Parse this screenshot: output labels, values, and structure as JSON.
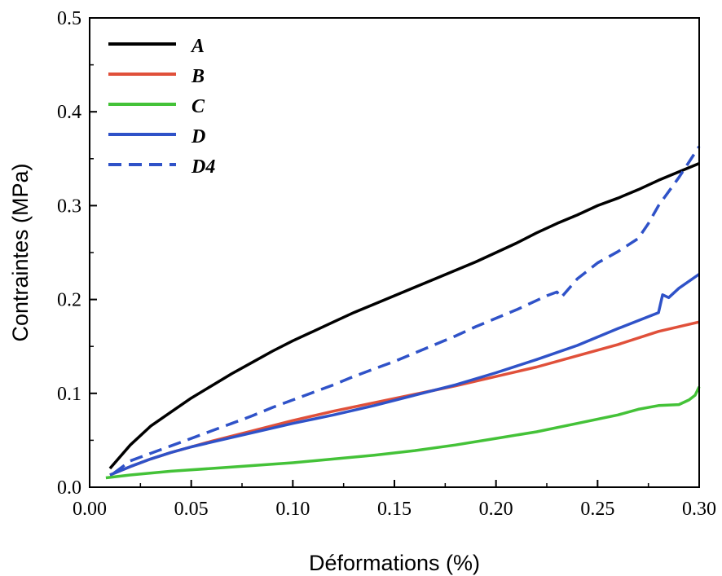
{
  "chart_data": {
    "type": "line",
    "title": "",
    "xlabel": "Déformations (%)",
    "ylabel": "Contraintes (MPa)",
    "xlim": [
      0.0,
      0.3
    ],
    "ylim": [
      0.0,
      0.5
    ],
    "xticks": [
      "0.00",
      "0.05",
      "0.10",
      "0.15",
      "0.20",
      "0.25",
      "0.30"
    ],
    "yticks": [
      "0.0",
      "0.1",
      "0.2",
      "0.3",
      "0.4",
      "0.5"
    ],
    "grid": false,
    "legend_position": "top-left",
    "series": [
      {
        "name": "A",
        "color": "#000000",
        "dash": "solid",
        "x": [
          0.01,
          0.02,
          0.03,
          0.04,
          0.05,
          0.06,
          0.07,
          0.08,
          0.09,
          0.1,
          0.11,
          0.12,
          0.13,
          0.14,
          0.15,
          0.16,
          0.17,
          0.18,
          0.19,
          0.2,
          0.21,
          0.22,
          0.23,
          0.24,
          0.25,
          0.26,
          0.27,
          0.28,
          0.29,
          0.3
        ],
        "y": [
          0.02,
          0.045,
          0.065,
          0.08,
          0.095,
          0.108,
          0.121,
          0.133,
          0.145,
          0.156,
          0.166,
          0.176,
          0.186,
          0.195,
          0.204,
          0.213,
          0.222,
          0.231,
          0.24,
          0.25,
          0.26,
          0.271,
          0.281,
          0.29,
          0.3,
          0.308,
          0.317,
          0.327,
          0.336,
          0.345
        ]
      },
      {
        "name": "B",
        "color": "#e0503a",
        "dash": "solid",
        "x": [
          0.01,
          0.02,
          0.03,
          0.04,
          0.05,
          0.06,
          0.08,
          0.1,
          0.12,
          0.14,
          0.16,
          0.18,
          0.2,
          0.22,
          0.24,
          0.26,
          0.28,
          0.3
        ],
        "y": [
          0.013,
          0.022,
          0.03,
          0.037,
          0.043,
          0.049,
          0.06,
          0.071,
          0.081,
          0.09,
          0.099,
          0.108,
          0.118,
          0.128,
          0.14,
          0.152,
          0.166,
          0.176
        ]
      },
      {
        "name": "C",
        "color": "#44c238",
        "dash": "solid",
        "x": [
          0.008,
          0.02,
          0.04,
          0.06,
          0.08,
          0.1,
          0.12,
          0.14,
          0.16,
          0.18,
          0.2,
          0.22,
          0.24,
          0.26,
          0.27,
          0.28,
          0.29,
          0.295,
          0.298,
          0.3
        ],
        "y": [
          0.01,
          0.013,
          0.017,
          0.02,
          0.023,
          0.026,
          0.03,
          0.034,
          0.039,
          0.045,
          0.052,
          0.059,
          0.068,
          0.077,
          0.083,
          0.087,
          0.088,
          0.093,
          0.098,
          0.107
        ]
      },
      {
        "name": "D",
        "color": "#2f52c8",
        "dash": "solid",
        "x": [
          0.01,
          0.02,
          0.03,
          0.04,
          0.05,
          0.06,
          0.08,
          0.1,
          0.12,
          0.14,
          0.16,
          0.18,
          0.2,
          0.22,
          0.24,
          0.26,
          0.28,
          0.282,
          0.285,
          0.29,
          0.3
        ],
        "y": [
          0.013,
          0.022,
          0.03,
          0.037,
          0.043,
          0.048,
          0.058,
          0.068,
          0.077,
          0.087,
          0.098,
          0.109,
          0.122,
          0.136,
          0.151,
          0.169,
          0.186,
          0.205,
          0.202,
          0.212,
          0.227
        ]
      },
      {
        "name": "D4",
        "color": "#2f52c8",
        "dash": "dashed",
        "x": [
          0.012,
          0.02,
          0.03,
          0.04,
          0.05,
          0.06,
          0.07,
          0.08,
          0.09,
          0.1,
          0.11,
          0.12,
          0.13,
          0.14,
          0.15,
          0.16,
          0.17,
          0.18,
          0.19,
          0.2,
          0.21,
          0.22,
          0.225,
          0.23,
          0.232,
          0.24,
          0.25,
          0.26,
          0.27,
          0.275,
          0.28,
          0.29,
          0.3
        ],
        "y": [
          0.015,
          0.028,
          0.036,
          0.044,
          0.052,
          0.06,
          0.068,
          0.076,
          0.085,
          0.093,
          0.101,
          0.109,
          0.118,
          0.126,
          0.134,
          0.143,
          0.152,
          0.161,
          0.171,
          0.18,
          0.189,
          0.199,
          0.204,
          0.208,
          0.202,
          0.222,
          0.239,
          0.251,
          0.265,
          0.281,
          0.3,
          0.33,
          0.363
        ]
      }
    ]
  }
}
